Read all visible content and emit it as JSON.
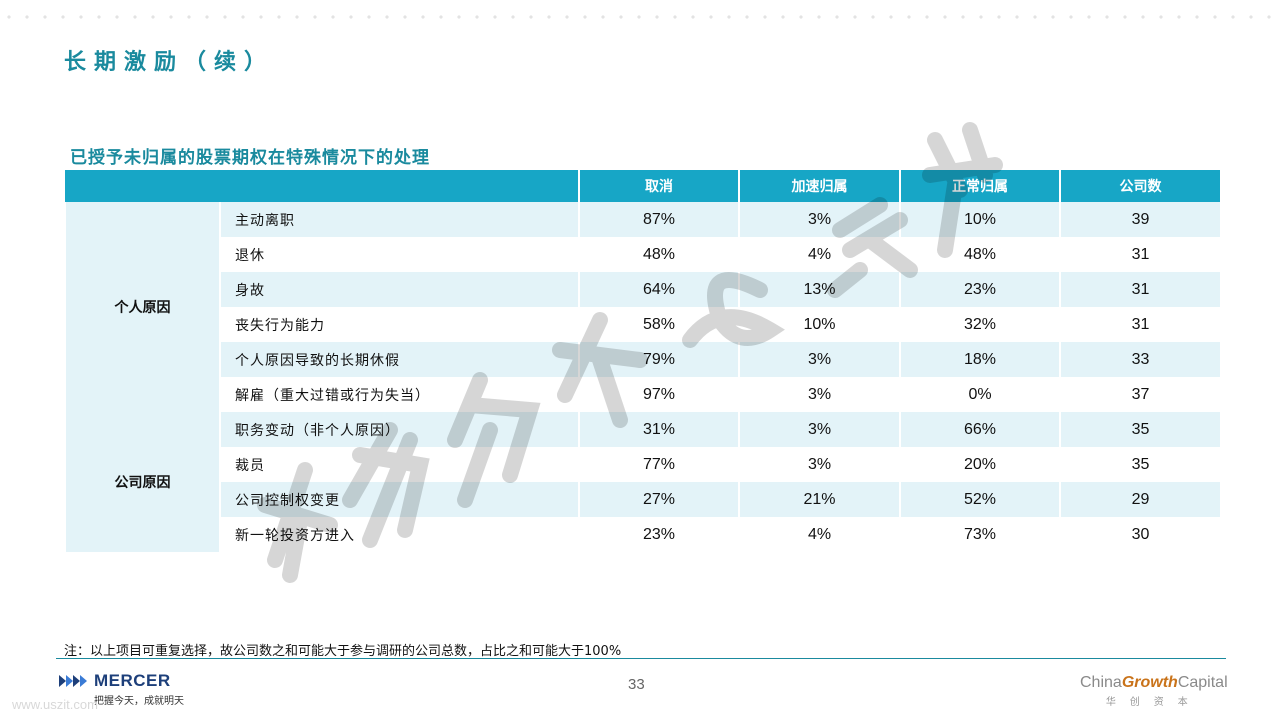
{
  "title": "长期激励（续）",
  "subtitle": "已授予未归属的股票期权在特殊情况下的处理",
  "table": {
    "headers": [
      "取消",
      "加速归属",
      "正常归属",
      "公司数"
    ],
    "groups": [
      {
        "label": "个人原因",
        "rows": [
          {
            "item": "主动离职",
            "cancel": "87%",
            "accelerated": "3%",
            "normal": "10%",
            "companies": "39"
          },
          {
            "item": "退休",
            "cancel": "48%",
            "accelerated": "4%",
            "normal": "48%",
            "companies": "31"
          },
          {
            "item": "身故",
            "cancel": "64%",
            "accelerated": "13%",
            "normal": "23%",
            "companies": "31"
          },
          {
            "item": "丧失行为能力",
            "cancel": "58%",
            "accelerated": "10%",
            "normal": "32%",
            "companies": "31"
          },
          {
            "item": "个人原因导致的长期休假",
            "cancel": "79%",
            "accelerated": "3%",
            "normal": "18%",
            "companies": "33"
          },
          {
            "item": "解雇（重大过错或行为失当）",
            "cancel": "97%",
            "accelerated": "3%",
            "normal": "0%",
            "companies": "37"
          }
        ]
      },
      {
        "label": "公司原因",
        "rows": [
          {
            "item": "职务变动（非个人原因）",
            "cancel": "31%",
            "accelerated": "3%",
            "normal": "66%",
            "companies": "35"
          },
          {
            "item": "裁员",
            "cancel": "77%",
            "accelerated": "3%",
            "normal": "20%",
            "companies": "35"
          },
          {
            "item": "公司控制权变更",
            "cancel": "27%",
            "accelerated": "21%",
            "normal": "52%",
            "companies": "29"
          },
          {
            "item": "新一轮投资方进入",
            "cancel": "23%",
            "accelerated": "4%",
            "normal": "73%",
            "companies": "30"
          }
        ]
      }
    ]
  },
  "note": "注：以上项目可重复选择，故公司数之和可能大于参与调研的公司总数，占比之和可能大于100%",
  "footer": {
    "page_number": "33",
    "mercer_name": "MERCER",
    "mercer_slogan": "把握今天，成就明天",
    "cgc_prefix": "China",
    "cgc_accent": "Growth",
    "cgc_suffix": "Capital",
    "cgc_chinese": "华创资本",
    "site": "www.uszit.com"
  },
  "watermark_text": "华创资本&美世",
  "colors": {
    "accent": "#1a8a9e",
    "header_bg": "#17a6c6",
    "row_shade": "#e3f3f8"
  }
}
